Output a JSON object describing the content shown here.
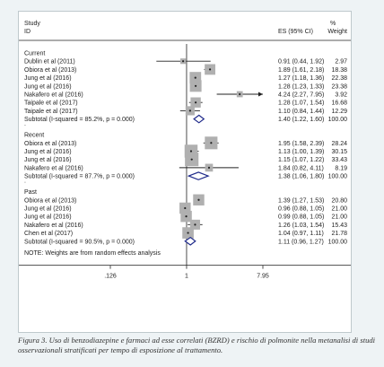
{
  "chart_data": {
    "type": "forest",
    "x_scale": "log",
    "xlim": [
      0.126,
      7.95
    ],
    "x_ticks": [
      ".126",
      "1",
      "7.95"
    ],
    "reference_line": 1,
    "header": {
      "col1_line1": "Study",
      "col1_line2": "ID",
      "col2": "ES (95% CI)",
      "col3_line1": "%",
      "col3_line2": "Weight"
    },
    "groups": [
      {
        "name": "Current",
        "studies": [
          {
            "label": "Dublin et al (2011)",
            "es": 0.91,
            "lo": 0.44,
            "hi": 1.92,
            "weight": 2.97,
            "text": "0.91 (0.44, 1.92)",
            "wtext": "2.97"
          },
          {
            "label": "Obiora et al (2013)",
            "es": 1.89,
            "lo": 1.61,
            "hi": 2.18,
            "weight": 18.38,
            "text": "1.89 (1.61, 2.18)",
            "wtext": "18.38"
          },
          {
            "label": "Jung et al (2016)",
            "es": 1.27,
            "lo": 1.18,
            "hi": 1.36,
            "weight": 22.38,
            "text": "1.27 (1.18, 1.36)",
            "wtext": "22.38"
          },
          {
            "label": "Jung et al (2016)",
            "es": 1.28,
            "lo": 1.23,
            "hi": 1.33,
            "weight": 23.38,
            "text": "1.28 (1.23, 1.33)",
            "wtext": "23.38"
          },
          {
            "label": "Nakafero et al (2016)",
            "es": 4.24,
            "lo": 2.27,
            "hi": 7.95,
            "weight": 3.92,
            "text": "4.24 (2.27, 7.95)",
            "wtext": "3.92",
            "arrow": true
          },
          {
            "label": "Taipale et al (2017)",
            "es": 1.28,
            "lo": 1.07,
            "hi": 1.54,
            "weight": 16.68,
            "text": "1.28 (1.07, 1.54)",
            "wtext": "16.68"
          },
          {
            "label": "Taipale et al (2017)",
            "es": 1.1,
            "lo": 0.84,
            "hi": 1.44,
            "weight": 12.29,
            "text": "1.10 (0.84, 1.44)",
            "wtext": "12.29"
          }
        ],
        "subtotal": {
          "label": "Subtotal  (I-squared = 85.2%, p = 0.000)",
          "es": 1.4,
          "lo": 1.22,
          "hi": 1.6,
          "text": "1.40 (1.22, 1.60)",
          "wtext": "100.00"
        }
      },
      {
        "name": "Recent",
        "studies": [
          {
            "label": "Obiora et al (2013)",
            "es": 1.95,
            "lo": 1.58,
            "hi": 2.39,
            "weight": 28.24,
            "text": "1.95 (1.58, 2.39)",
            "wtext": "28.24"
          },
          {
            "label": "Jung et al (2016)",
            "es": 1.13,
            "lo": 1.0,
            "hi": 1.39,
            "weight": 30.15,
            "text": "1.13 (1.00, 1.39)",
            "wtext": "30.15"
          },
          {
            "label": "Jung et al (2016)",
            "es": 1.15,
            "lo": 1.07,
            "hi": 1.22,
            "weight": 33.43,
            "text": "1.15 (1.07, 1.22)",
            "wtext": "33.43"
          },
          {
            "label": "Nakafero et al (2016)",
            "es": 1.84,
            "lo": 0.82,
            "hi": 4.11,
            "weight": 8.19,
            "text": "1.84 (0.82, 4.11)",
            "wtext": "8.19"
          }
        ],
        "subtotal": {
          "label": "Subtotal  (I-squared = 87.7%, p = 0.000)",
          "es": 1.38,
          "lo": 1.06,
          "hi": 1.8,
          "text": "1.38 (1.06, 1.80)",
          "wtext": "100.00"
        }
      },
      {
        "name": "Past",
        "studies": [
          {
            "label": "Obiora et al (2013)",
            "es": 1.39,
            "lo": 1.27,
            "hi": 1.53,
            "weight": 20.8,
            "text": "1.39 (1.27, 1.53)",
            "wtext": "20.80"
          },
          {
            "label": "Jung et al (2016)",
            "es": 0.96,
            "lo": 0.88,
            "hi": 1.05,
            "weight": 21.0,
            "text": "0.96 (0.88, 1.05)",
            "wtext": "21.00"
          },
          {
            "label": "Jung et al (2016)",
            "es": 0.99,
            "lo": 0.88,
            "hi": 1.05,
            "weight": 21.0,
            "text": "0.99 (0.88, 1.05)",
            "wtext": "21.00"
          },
          {
            "label": "Nakafero et al (2016)",
            "es": 1.26,
            "lo": 1.03,
            "hi": 1.54,
            "weight": 15.43,
            "text": "1.26 (1.03, 1.54)",
            "wtext": "15.43"
          },
          {
            "label": "Chen et al (2017)",
            "es": 1.04,
            "lo": 0.97,
            "hi": 1.11,
            "weight": 21.78,
            "text": "1.04 (0.97, 1.11)",
            "wtext": "21.78"
          }
        ],
        "subtotal": {
          "label": "Subtotal  (I-squared = 90.5%, p = 0.000)",
          "es": 1.11,
          "lo": 0.96,
          "hi": 1.27,
          "text": "1.11 (0.96, 1.27)",
          "wtext": "100.00"
        }
      }
    ],
    "note": "NOTE: Weights are from random effects analysis",
    "colors": {
      "box": "#b0b0b0",
      "line": "#222222",
      "diamond": "#1f2a8a",
      "frame": "#bfc9cd"
    }
  },
  "caption": "Figura 3. Uso di benzodiazepine e farmaci ad esse correlati (BZRD) e rischio di polmonite nella metanalisi di studi osservazionali stratificati per tempo di esposizione al trattamento."
}
